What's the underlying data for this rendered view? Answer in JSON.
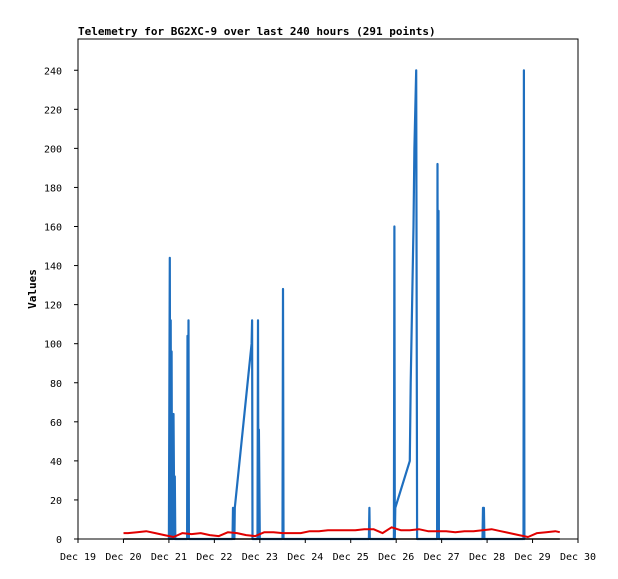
{
  "chart_data": {
    "type": "line",
    "title": "Telemetry for BG2XC-9 over last 240 hours (291 points)",
    "xlabel": "",
    "ylabel": "Values",
    "x_ticks": [
      "Dec 19",
      "Dec 20",
      "Dec 21",
      "Dec 22",
      "Dec 23",
      "Dec 24",
      "Dec 25",
      "Dec 26",
      "Dec 27",
      "Dec 28",
      "Dec 29",
      "Dec 30"
    ],
    "xlim": [
      0,
      11
    ],
    "ylim": [
      0,
      256
    ],
    "y_ticks": [
      0,
      20,
      40,
      60,
      80,
      100,
      120,
      140,
      160,
      180,
      200,
      220,
      240
    ],
    "grid": false,
    "legend": "none",
    "series": [
      {
        "color": "#1f6fbf",
        "x": [
          2.0,
          2.02,
          2.03,
          2.04,
          2.05,
          2.06,
          2.07,
          2.08,
          2.09,
          2.1,
          2.12,
          2.13,
          2.14,
          2.15,
          2.16,
          2.17,
          2.18,
          2.4,
          2.41,
          2.42,
          2.43,
          2.44,
          2.45,
          2.46,
          3.4,
          3.41,
          3.42,
          3.43,
          3.44,
          3.45,
          3.82,
          3.83,
          3.84,
          3.95,
          3.96,
          3.97,
          3.98,
          4.0,
          4.01,
          4.02,
          4.5,
          4.51,
          4.52,
          4.53,
          6.4,
          6.41,
          6.42,
          6.43,
          6.95,
          6.96,
          6.97,
          6.98,
          7.3,
          7.32,
          7.35,
          7.38,
          7.4,
          7.42,
          7.44,
          7.46,
          7.47,
          7.48,
          7.9,
          7.91,
          7.92,
          7.93,
          7.94,
          7.95,
          8.9,
          8.91,
          8.92,
          8.93,
          8.94,
          9.8,
          9.81,
          9.82,
          9.83
        ],
        "values": [
          0,
          144,
          0,
          112,
          0,
          96,
          0,
          48,
          0,
          64,
          0,
          32,
          0,
          0,
          0,
          0,
          0,
          0,
          104,
          0,
          112,
          0,
          0,
          0,
          0,
          16,
          0,
          8,
          0,
          16,
          100,
          112,
          0,
          0,
          112,
          0,
          56,
          0,
          0,
          0,
          0,
          128,
          0,
          0,
          0,
          16,
          0,
          0,
          0,
          160,
          0,
          16,
          40,
          80,
          120,
          160,
          200,
          220,
          240,
          0,
          0,
          0,
          0,
          192,
          0,
          168,
          0,
          0,
          0,
          16,
          0,
          16,
          0,
          0,
          240,
          0,
          0
        ]
      },
      {
        "color": "#e00000",
        "x": [
          1.0,
          1.1,
          1.3,
          1.5,
          1.7,
          1.9,
          2.1,
          2.3,
          2.5,
          2.7,
          2.9,
          3.1,
          3.3,
          3.5,
          3.7,
          3.9,
          4.1,
          4.3,
          4.5,
          4.7,
          4.9,
          5.1,
          5.3,
          5.5,
          5.7,
          5.9,
          6.1,
          6.3,
          6.5,
          6.7,
          6.9,
          7.1,
          7.3,
          7.5,
          7.7,
          7.9,
          8.1,
          8.3,
          8.5,
          8.7,
          8.9,
          9.1,
          9.3,
          9.5,
          9.7,
          9.9,
          10.1,
          10.3,
          10.5,
          10.6
        ],
        "values": [
          3,
          3,
          3.5,
          4,
          3,
          2,
          1,
          3,
          2.5,
          3,
          2,
          1.5,
          3.5,
          3,
          2,
          1.5,
          3.5,
          3.5,
          3,
          3,
          3,
          4,
          4,
          4.5,
          4.5,
          4.5,
          4.5,
          5,
          5,
          3,
          6,
          4.5,
          4.5,
          5,
          4,
          4,
          4,
          3.5,
          4,
          4,
          4.5,
          5,
          4,
          3,
          2,
          1,
          3,
          3.5,
          4,
          3.5
        ]
      },
      {
        "color": "#000000",
        "x": [
          1.0,
          10.6
        ],
        "values": [
          0,
          0
        ]
      }
    ]
  }
}
